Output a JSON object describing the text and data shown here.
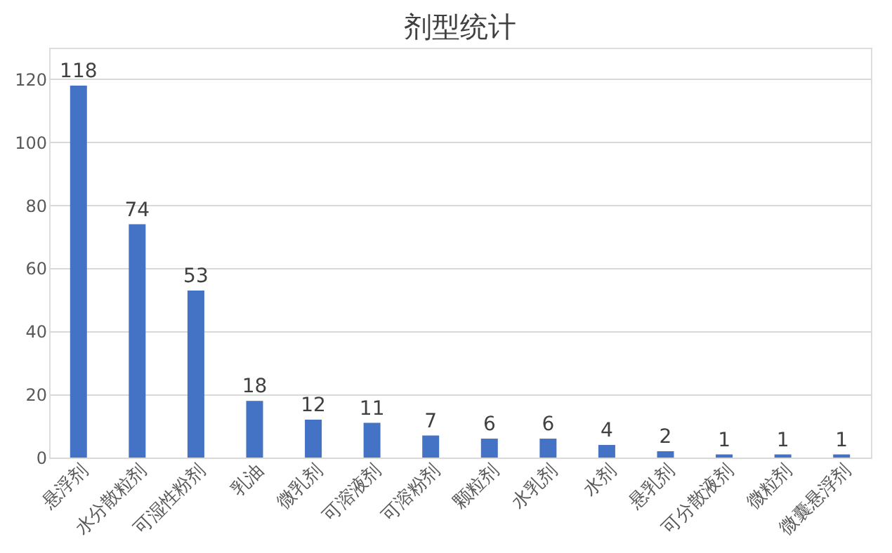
{
  "chart_data": {
    "type": "bar",
    "title": "剂型统计",
    "categories": [
      "悬浮剂",
      "水分散粒剂",
      "可湿性粉剂",
      "乳油",
      "微乳剂",
      "可溶液剂",
      "可溶粉剂",
      "颗粒剂",
      "水乳剂",
      "水剂",
      "悬乳剂",
      "可分散液剂",
      "微粒剂",
      "微囊悬浮剂"
    ],
    "values": [
      118,
      74,
      53,
      18,
      12,
      11,
      7,
      6,
      6,
      4,
      2,
      1,
      1,
      1
    ],
    "color": "#4472c4",
    "ylim": [
      0,
      130
    ],
    "yticks": [
      0,
      20,
      40,
      60,
      80,
      100,
      120
    ],
    "grid": "y",
    "data_labels": true
  }
}
